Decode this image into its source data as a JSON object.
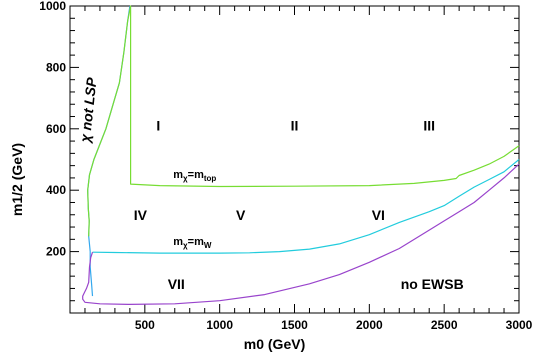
{
  "chart_data": {
    "type": "line",
    "title": "",
    "xlabel": "m0 (GeV)",
    "ylabel": "m1/2 (GeV)",
    "xlim": [
      0,
      3000
    ],
    "ylim": [
      0,
      1000
    ],
    "x_ticks": [
      500,
      1000,
      1500,
      2000,
      2500,
      3000
    ],
    "x_tick_labels": [
      "500",
      "1000",
      "1500",
      "2000",
      "2500",
      "3000"
    ],
    "y_ticks": [
      200,
      400,
      600,
      800,
      1000
    ],
    "y_tick_labels": [
      "200",
      "400",
      "600",
      "800",
      "1000"
    ],
    "grid": false,
    "legend": "none",
    "series": [
      {
        "color": "#34a8ee",
        "x": [
          150,
          145,
          135,
          135,
          125,
          128,
          122,
          118,
          130,
          160,
          200,
          240,
          270,
          300,
          330,
          360,
          385,
          400
        ],
        "y": [
          55,
          90,
          150,
          200,
          250,
          300,
          340,
          400,
          450,
          500,
          550,
          600,
          650,
          700,
          750,
          850,
          950,
          1000
        ]
      },
      {
        "color": "#77dd33",
        "x": [
          125,
          128,
          122,
          118,
          130,
          160,
          200,
          240,
          270,
          300,
          330,
          360,
          385,
          405,
          405,
          405,
          600,
          1000,
          1500,
          2000,
          2300,
          2500,
          2580,
          2600,
          2700,
          2800,
          2900,
          3000
        ],
        "y": [
          250,
          300,
          340,
          400,
          450,
          500,
          550,
          600,
          650,
          700,
          750,
          850,
          950,
          1000,
          1000,
          420,
          415,
          412,
          413,
          415,
          422,
          432,
          438,
          448,
          465,
          485,
          510,
          545
        ]
      },
      {
        "color": "#22ccdd",
        "x": [
          150,
          300,
          600,
          1000,
          1200,
          1400,
          1600,
          1800,
          2000,
          2200,
          2400,
          2500,
          2600,
          2700,
          2800,
          2900,
          3000
        ],
        "y": [
          198,
          197,
          195,
          195,
          196,
          200,
          208,
          225,
          255,
          295,
          330,
          350,
          380,
          410,
          435,
          460,
          500
        ]
      },
      {
        "color": "#9944cc",
        "x": [
          150,
          138,
          130,
          125,
          110,
          95,
          85,
          85,
          100,
          200,
          400,
          700,
          1000,
          1300,
          1600,
          1800,
          2000,
          2200,
          2400,
          2500,
          2600,
          2700,
          2800,
          2900,
          3000
        ],
        "y": [
          198,
          180,
          150,
          100,
          80,
          65,
          55,
          45,
          35,
          30,
          28,
          30,
          40,
          60,
          95,
          125,
          165,
          210,
          270,
          300,
          330,
          360,
          400,
          440,
          485
        ]
      }
    ],
    "region_labels": [
      {
        "text": "I",
        "x": 590,
        "y": 610
      },
      {
        "text": "II",
        "x": 1500,
        "y": 610
      },
      {
        "text": "III",
        "x": 2400,
        "y": 610
      },
      {
        "text": "IV",
        "x": 470,
        "y": 320
      },
      {
        "text": "V",
        "x": 1140,
        "y": 320
      },
      {
        "text": "VI",
        "x": 2060,
        "y": 320
      },
      {
        "text": "VII",
        "x": 710,
        "y": 95
      },
      {
        "text": "no EWSB",
        "x": 2420,
        "y": 95
      }
    ],
    "annotations": [
      {
        "text": "χ not LSP",
        "x": 155,
        "y": 660,
        "angle": -84
      },
      {
        "text": "m",
        "sub": "χ",
        "suffix": "=m",
        "sub2": "top",
        "x": 690,
        "y": 440
      },
      {
        "text": "m",
        "sub": "χ",
        "suffix": "=m",
        "sub2": "W",
        "x": 690,
        "y": 222
      }
    ]
  }
}
